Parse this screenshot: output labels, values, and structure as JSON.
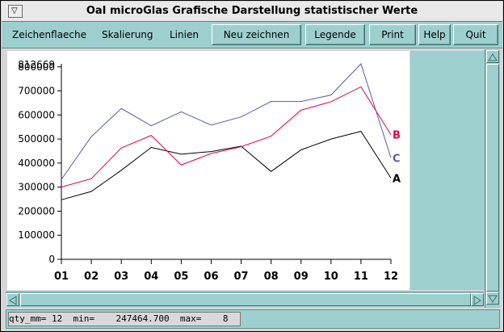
{
  "window": {
    "title": "OaI microGlas  Grafische Darstellung statistischer Werte",
    "menu_glyph": "▽"
  },
  "menu": {
    "items": [
      "Zeichenflaeche",
      "Skalierung",
      "Linien"
    ]
  },
  "toolbar": {
    "redraw": "Neu zeichnen",
    "legend": "Legende",
    "print": "Print",
    "help": "Help",
    "quit": "Quit"
  },
  "status": {
    "text": "qty_mm= 12  min=    247464.700  max=    8"
  },
  "chart_data": {
    "type": "line",
    "categories": [
      "01",
      "02",
      "03",
      "04",
      "05",
      "06",
      "07",
      "08",
      "09",
      "10",
      "11",
      "12"
    ],
    "y_ticks": [
      "0",
      "100000",
      "200000",
      "300000",
      "400000",
      "500000",
      "600000",
      "700000",
      "800000"
    ],
    "y_top_label": "812669",
    "ylim": [
      0,
      812669
    ],
    "series": [
      {
        "name": "A",
        "color": "#000000",
        "values": [
          247465,
          282000,
          370000,
          465000,
          437000,
          448000,
          470000,
          365000,
          455000,
          500000,
          532000,
          338000
        ]
      },
      {
        "name": "B",
        "color": "#e0004d",
        "values": [
          300000,
          335000,
          463000,
          515000,
          392000,
          440000,
          468000,
          512000,
          620000,
          655000,
          717000,
          518000
        ]
      },
      {
        "name": "C",
        "color": "#5a5aa8",
        "values": [
          332000,
          510000,
          627000,
          555000,
          613000,
          558000,
          592000,
          656000,
          656000,
          683000,
          812669,
          422000
        ]
      }
    ]
  }
}
